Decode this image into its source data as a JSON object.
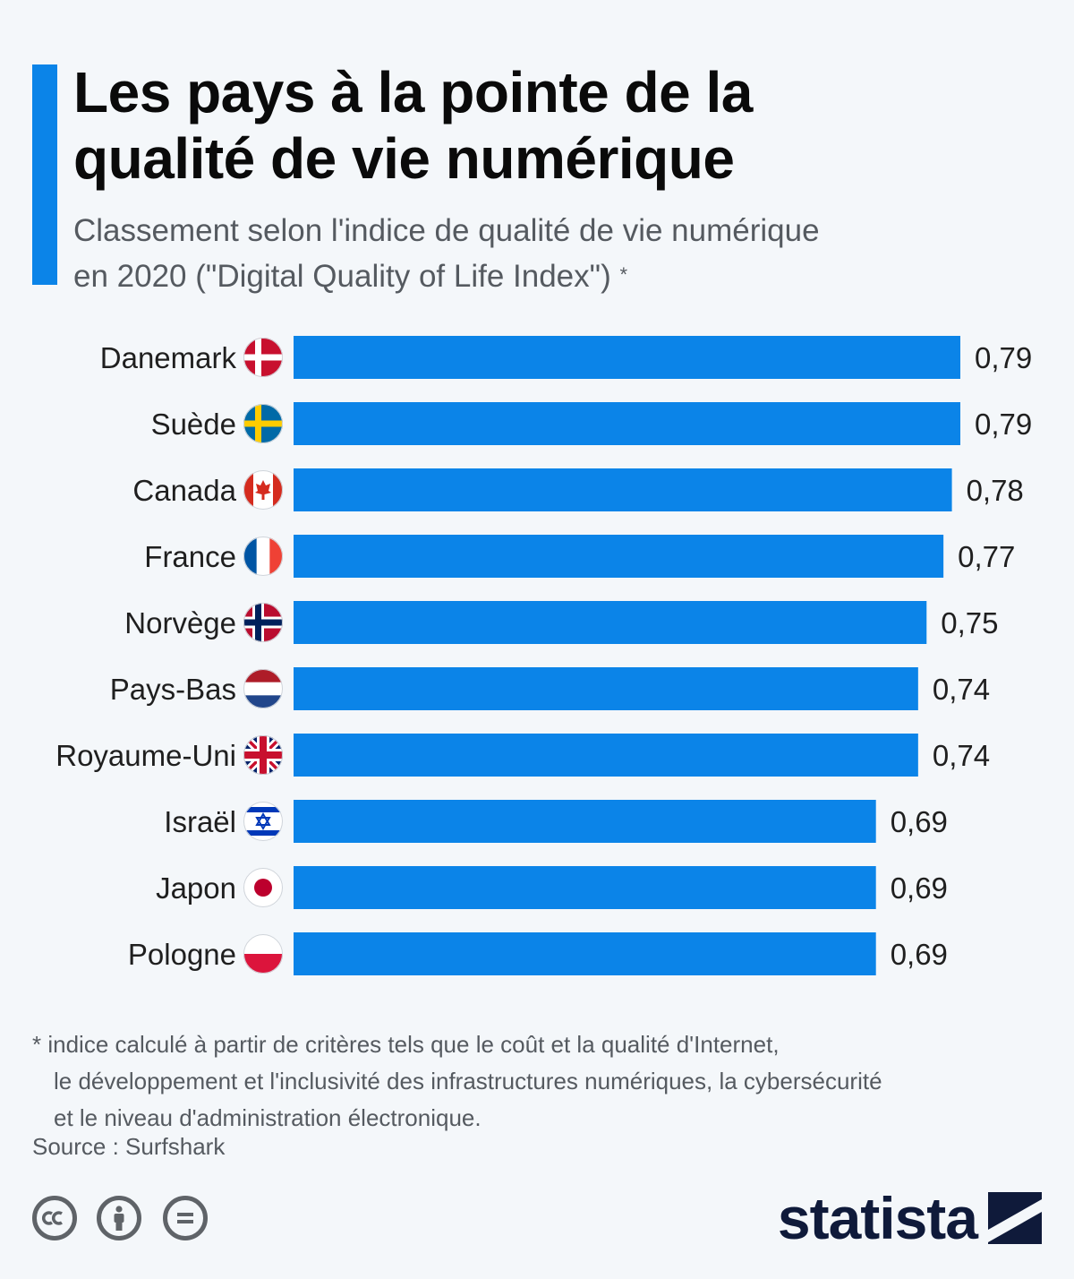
{
  "title_line1": "Les pays à la pointe de la",
  "title_line2": "qualité de vie numérique",
  "subtitle_line1": "Classement selon l'indice de qualité de vie numérique",
  "subtitle_line2": "en 2020 (\"Digital Quality of Life Index\")",
  "subtitle_marker": "*",
  "footnote_line1": "* indice calculé à partir de critères tels que le coût et la qualité d'Internet,",
  "footnote_line2": "le développement et l'inclusivité des infrastructures numériques, la cybersécurité",
  "footnote_line3": "et le niveau d'administration électronique.",
  "source": "Source : Surfshark",
  "logo": "statista",
  "colors": {
    "bar": "#0b84e8",
    "accent": "#0b84e8",
    "logo": "#0f1a3a"
  },
  "license_icons": [
    "cc-icon",
    "by-icon",
    "nd-icon"
  ],
  "chart_data": {
    "type": "bar",
    "orientation": "horizontal",
    "categories": [
      "Danemark",
      "Suède",
      "Canada",
      "France",
      "Norvège",
      "Pays-Bas",
      "Royaume-Uni",
      "Israël",
      "Japon",
      "Pologne"
    ],
    "values": [
      0.79,
      0.79,
      0.78,
      0.77,
      0.75,
      0.74,
      0.74,
      0.69,
      0.69,
      0.69
    ],
    "labels": [
      "0,79",
      "0,79",
      "0,78",
      "0,77",
      "0,75",
      "0,74",
      "0,74",
      "0,69",
      "0,69",
      "0,69"
    ],
    "flags": [
      "denmark-flag-icon",
      "sweden-flag-icon",
      "canada-flag-icon",
      "france-flag-icon",
      "norway-flag-icon",
      "netherlands-flag-icon",
      "uk-flag-icon",
      "israel-flag-icon",
      "japan-flag-icon",
      "poland-flag-icon"
    ],
    "xlim": [
      0,
      0.79
    ],
    "grid": false,
    "legend": "none"
  }
}
